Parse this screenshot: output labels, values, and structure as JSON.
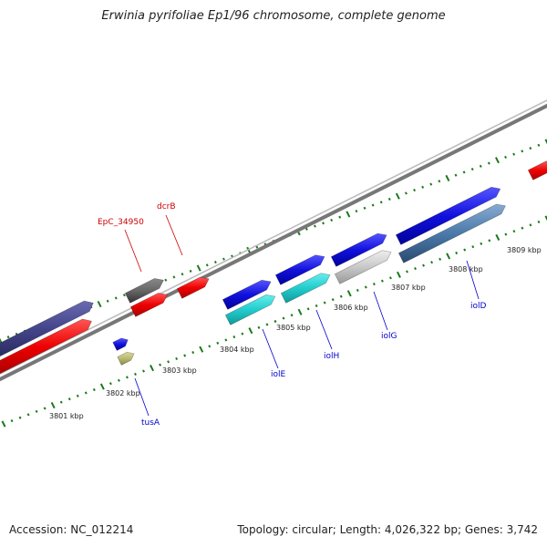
{
  "title": "Erwinia pyrifoliae Ep1/96 chromosome, complete genome",
  "footer": {
    "accession": "Accession: NC_012214",
    "summary": "Topology: circular; Length: 4,026,322 bp; Genes: 3,742"
  },
  "colors": {
    "backbone": "#8a8a8a",
    "tick": "#1a7a1a",
    "label_red": "#cc0000",
    "label_blue": "#0000cc"
  },
  "kbp_labels": [
    "3801 kbp",
    "3802 kbp",
    "3803 kbp",
    "3804 kbp",
    "3805 kbp",
    "3806 kbp",
    "3807 kbp",
    "3808 kbp",
    "3809 kbp"
  ],
  "gene_labels": [
    {
      "name": "EpC_34950",
      "color": "#cc0000"
    },
    {
      "name": "dcrB",
      "color": "#cc0000"
    },
    {
      "name": "iolE",
      "color": "#0000cc"
    },
    {
      "name": "iolH",
      "color": "#0000cc"
    },
    {
      "name": "iolG",
      "color": "#0000cc"
    },
    {
      "name": "iolD",
      "color": "#0000cc"
    },
    {
      "name": "tusA",
      "color": "#0000cc"
    }
  ]
}
